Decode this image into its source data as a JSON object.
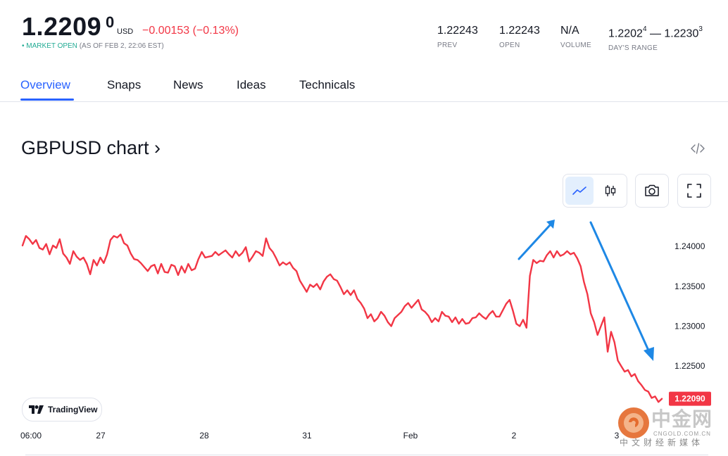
{
  "quote": {
    "price_main": "1.2209",
    "price_sup": "0",
    "currency": "USD",
    "change": "−0.00153  (−0.13%)",
    "market_dot": "•",
    "market_status": "MARKET OPEN",
    "as_of": "(AS OF FEB 2, 22:06 EST)"
  },
  "stats": {
    "prev": {
      "value": "1.22243",
      "label": "PREV"
    },
    "open": {
      "value": "1.22243",
      "label": "OPEN"
    },
    "volume": {
      "value": "N/A",
      "label": "VOLUME"
    },
    "range": {
      "low": "1.2202",
      "low_sup": "4",
      "dash": "—",
      "high": "1.2230",
      "high_sup": "3",
      "label": "DAY'S RANGE"
    }
  },
  "tabs": [
    {
      "label": "Overview",
      "active": true
    },
    {
      "label": "Snaps"
    },
    {
      "label": "News"
    },
    {
      "label": "Ideas"
    },
    {
      "label": "Technicals"
    }
  ],
  "chart_header": {
    "title": "GBPUSD chart ›",
    "embed_icon": "code-embed-icon",
    "tools": [
      "line-chart-icon",
      "candlestick-icon",
      "camera-icon",
      "fullscreen-icon"
    ]
  },
  "chart_data": {
    "type": "line",
    "series": [
      {
        "color": "#f23645",
        "values": [
          1.2401,
          1.2413,
          1.2409,
          1.2403,
          1.2408,
          1.2398,
          1.2396,
          1.2403,
          1.239,
          1.2401,
          1.2398,
          1.2409,
          1.2391,
          1.2386,
          1.2378,
          1.2394,
          1.2387,
          1.2383,
          1.2386,
          1.2378,
          1.2365,
          1.2383,
          1.2376,
          1.2386,
          1.2379,
          1.239,
          1.2408,
          1.2413,
          1.2411,
          1.2415,
          1.2404,
          1.2401,
          1.2391,
          1.2384,
          1.2383,
          1.2379,
          1.2374,
          1.2369,
          1.2375,
          1.2377,
          1.2366,
          1.2378,
          1.2368,
          1.2367,
          1.2377,
          1.2375,
          1.2364,
          1.2375,
          1.2367,
          1.2378,
          1.237,
          1.2372,
          1.2384,
          1.2393,
          1.2386,
          1.2387,
          1.2388,
          1.2393,
          1.2389,
          1.2392,
          1.2395,
          1.239,
          1.2386,
          1.2394,
          1.2388,
          1.2392,
          1.2399,
          1.2381,
          1.2387,
          1.2394,
          1.2392,
          1.2388,
          1.241,
          1.2398,
          1.2393,
          1.2385,
          1.2376,
          1.238,
          1.2377,
          1.238,
          1.2373,
          1.2369,
          1.2357,
          1.235,
          1.2343,
          1.2352,
          1.2349,
          1.2353,
          1.2346,
          1.2356,
          1.2362,
          1.2365,
          1.2359,
          1.2357,
          1.2349,
          1.234,
          1.2345,
          1.2339,
          1.2345,
          1.2334,
          1.2329,
          1.2322,
          1.231,
          1.2315,
          1.2306,
          1.231,
          1.2318,
          1.2313,
          1.2305,
          1.23,
          1.231,
          1.2314,
          1.2318,
          1.2325,
          1.2329,
          1.2323,
          1.2328,
          1.2333,
          1.2321,
          1.2318,
          1.2313,
          1.2305,
          1.231,
          1.2306,
          1.2318,
          1.2313,
          1.2312,
          1.2305,
          1.2311,
          1.2303,
          1.2309,
          1.2303,
          1.2304,
          1.231,
          1.2311,
          1.2316,
          1.2312,
          1.2309,
          1.2315,
          1.2319,
          1.2312,
          1.2312,
          1.232,
          1.2328,
          1.2333,
          1.2319,
          1.2303,
          1.23,
          1.2308,
          1.2298,
          1.2363,
          1.2383,
          1.2379,
          1.2382,
          1.2381,
          1.2389,
          1.2394,
          1.2386,
          1.2394,
          1.2388,
          1.239,
          1.2394,
          1.239,
          1.2392,
          1.2385,
          1.2375,
          1.2355,
          1.234,
          1.2316,
          1.2305,
          1.2289,
          1.23,
          1.2311,
          1.2268,
          1.2293,
          1.228,
          1.2257,
          1.225,
          1.2243,
          1.2245,
          1.2237,
          1.224,
          1.2231,
          1.2226,
          1.222,
          1.2218,
          1.221,
          1.2212,
          1.2205,
          1.2209
        ]
      }
    ],
    "x_ticks": [
      "06:00",
      "27",
      "28",
      "31",
      "Feb",
      "2",
      "3"
    ],
    "y_ticks": [
      "1.24000",
      "1.23500",
      "1.23000",
      "1.22500"
    ],
    "ylim": [
      1.21902,
      1.2423
    ],
    "last_price_label": "1.22090",
    "last_price_color": "#f23645",
    "grid": false
  },
  "branding": {
    "tradingview": "TradingView",
    "watermark_cn": "中金网",
    "watermark_url": "CNGOLD.COM.CN",
    "watermark_sub": "中文财经新媒体"
  },
  "colors": {
    "accent": "#2962ff",
    "negative": "#f23645",
    "positive": "#22ab94",
    "annotation_arrow": "#1e88e5"
  }
}
